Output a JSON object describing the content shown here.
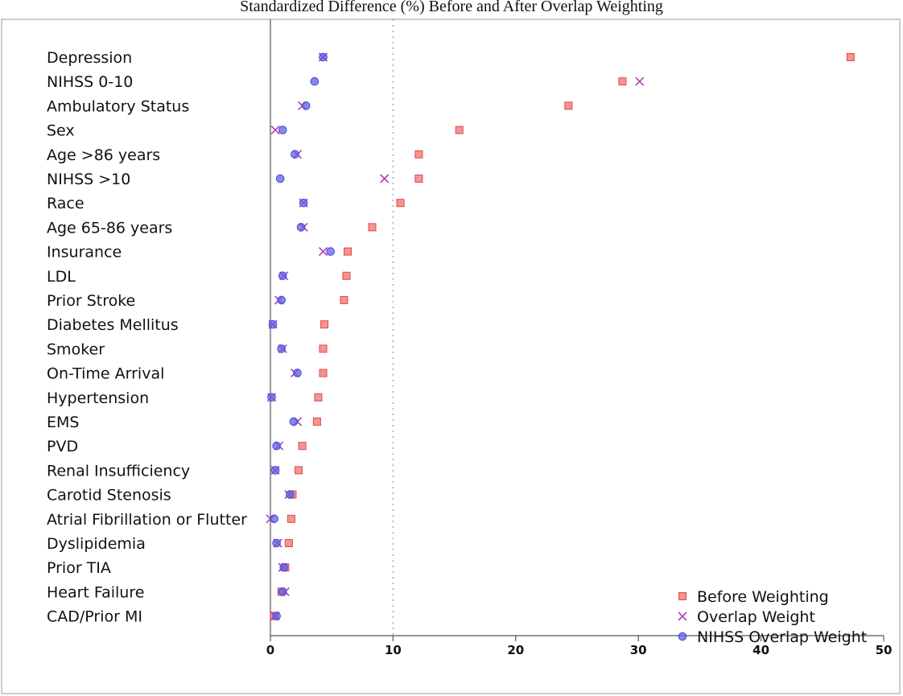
{
  "header_fragment": "Standardized Difference (%) Before and After Overlap Weighting",
  "chart_data": {
    "type": "scatter",
    "title": "",
    "xlabel": "",
    "ylabel": "",
    "xlim": [
      0,
      50
    ],
    "xticks": [
      0,
      10,
      20,
      30,
      40,
      50
    ],
    "reference_line_x": 10,
    "grid": false,
    "legend_position": "bottom-right",
    "categories": [
      "Depression",
      "NIHSS 0-10",
      "Ambulatory Status",
      "Sex",
      "Age >86 years",
      "NIHSS >10",
      "Race",
      "Age 65-86 years",
      "Insurance",
      "LDL",
      "Prior Stroke",
      "Diabetes Mellitus",
      "Smoker",
      "On-Time Arrival",
      "Hypertension",
      "EMS",
      "PVD",
      "Renal Insufficiency",
      "Carotid Stenosis",
      "Atrial Fibrillation or Flutter",
      "Dyslipidemia",
      "Prior TIA",
      "Heart Failure",
      "CAD/Prior MI"
    ],
    "series": [
      {
        "name": "Before Weighting",
        "marker": "square",
        "color": "#f07070",
        "values": [
          47.3,
          28.7,
          24.3,
          15.4,
          12.1,
          12.1,
          10.6,
          8.3,
          6.3,
          6.2,
          6.0,
          4.4,
          4.3,
          4.3,
          3.9,
          3.8,
          2.6,
          2.3,
          1.8,
          1.7,
          1.5,
          1.2,
          0.9,
          0.3
        ]
      },
      {
        "name": "Overlap Weight",
        "marker": "x",
        "color": "#b040b0",
        "values": [
          4.3,
          30.1,
          2.6,
          0.4,
          2.2,
          9.3,
          2.7,
          2.7,
          4.3,
          1.1,
          0.7,
          0.2,
          1.0,
          2.0,
          0.1,
          2.2,
          0.7,
          0.4,
          1.5,
          0.0,
          0.6,
          1.0,
          1.2,
          0.4
        ]
      },
      {
        "name": "NIHSS Overlap Weight",
        "marker": "circle",
        "color": "#6060e8",
        "values": [
          4.3,
          3.6,
          2.9,
          1.0,
          2.0,
          0.8,
          2.7,
          2.5,
          4.9,
          1.0,
          0.9,
          0.2,
          0.9,
          2.2,
          0.1,
          1.9,
          0.5,
          0.4,
          1.6,
          0.3,
          0.5,
          1.1,
          1.0,
          0.5
        ]
      }
    ]
  }
}
